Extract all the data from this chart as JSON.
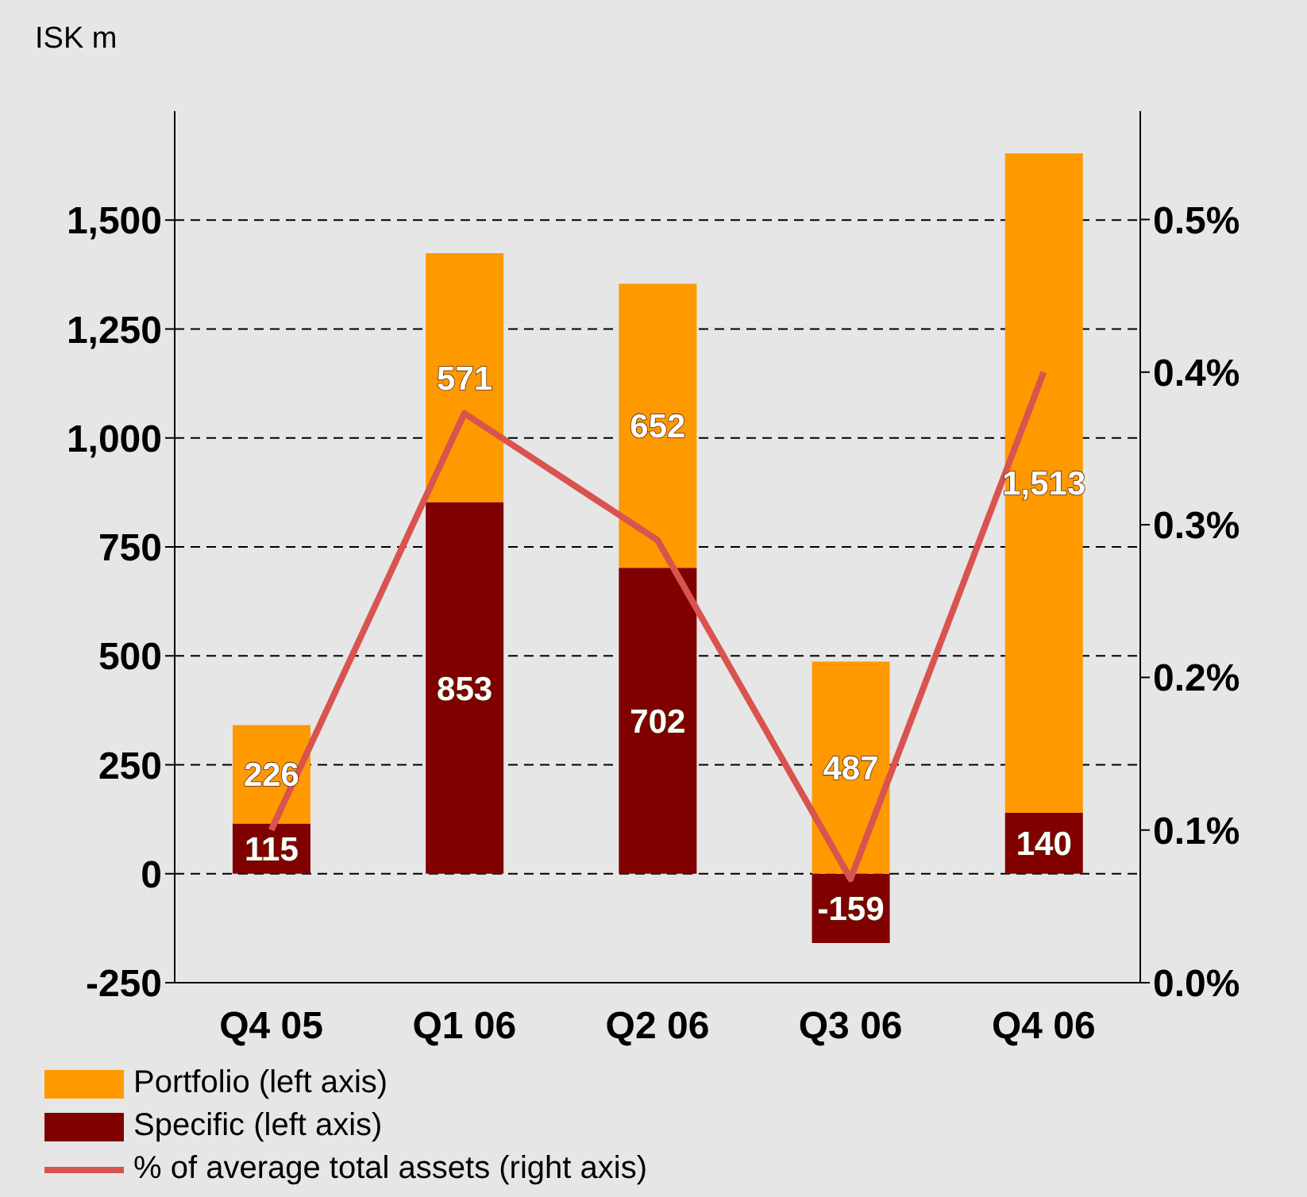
{
  "chart_data": {
    "type": "bar",
    "stacked": true,
    "annotations": [
      "ISK m"
    ],
    "categories": [
      "Q4 05",
      "Q1 06",
      "Q2 06",
      "Q3 06",
      "Q4 06"
    ],
    "series": [
      {
        "name": "Specific (left axis)",
        "color": "#800000",
        "values": [
          115,
          853,
          702,
          -159,
          140
        ],
        "value_labels": [
          "115",
          "853",
          "702",
          "-159",
          "140"
        ]
      },
      {
        "name": "Portfolio (left axis)",
        "color": "#ff9900",
        "values": [
          226,
          571,
          652,
          487,
          1513
        ],
        "value_labels": [
          "226",
          "571",
          "652",
          "487",
          "1,513"
        ]
      },
      {
        "name": "% of average total assets (right axis)",
        "type": "line",
        "axis": "y2",
        "color": "#d9534f",
        "values": [
          0.1,
          0.373,
          0.29,
          0.068,
          0.4
        ]
      }
    ],
    "ylim": [
      -250,
      1750
    ],
    "yticks": [
      -250,
      0,
      250,
      500,
      750,
      {
        "value": 1000,
        "label": "1,000"
      },
      {
        "value": 1250,
        "label": "1,250"
      },
      {
        "value": 1500,
        "label": "1,500"
      }
    ],
    "y2lim": [
      0,
      0.571
    ],
    "y2ticks": [
      {
        "value": 0,
        "label": "0.0%"
      },
      {
        "value": 0.1,
        "label": "0.1%"
      },
      {
        "value": 0.2,
        "label": "0.2%"
      },
      {
        "value": 0.3,
        "label": "0.3%"
      },
      {
        "value": 0.4,
        "label": "0.4%"
      },
      {
        "value": 0.5,
        "label": "0.5%"
      }
    ],
    "grid": "y",
    "legend": "bottom",
    "marker": "none",
    "line_style": "solid"
  }
}
